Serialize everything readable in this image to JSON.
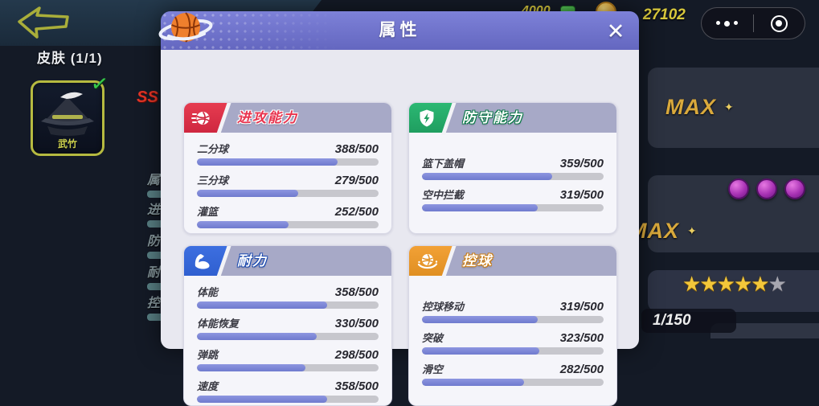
{
  "hud": {
    "skin_header": "皮肤 (1/1)",
    "skin_name": "武竹",
    "skin_check": "✓",
    "rarity": "SS",
    "bg_nav_labels": [
      "属",
      "进",
      "防",
      "耐",
      "控"
    ],
    "currency_small": "4000",
    "currency_coins": "27102",
    "max_label_1": "MAX",
    "max_label_2": "MAX",
    "sparkle": "✦",
    "gem_orbs": 3,
    "stars": {
      "filled": 5,
      "empty": 1,
      "glyph": "★"
    },
    "progress_counter": "1/150"
  },
  "modal": {
    "title": "属性",
    "close": "✕",
    "sections": [
      {
        "id": "offense",
        "title": "进攻能力",
        "icon": "flaming-basketball-icon",
        "badge_color": "#e63c50",
        "badge_color_dark": "#cf2740",
        "title_text_color": "#e8344e",
        "title_outline_color": "#ffffff",
        "stats": [
          {
            "label": "二分球",
            "value": 388,
            "max": 500
          },
          {
            "label": "三分球",
            "value": 279,
            "max": 500
          },
          {
            "label": "灌篮",
            "value": 252,
            "max": 500
          }
        ]
      },
      {
        "id": "defense",
        "title": "防守能力",
        "icon": "shield-lightning-icon",
        "badge_color": "#2cb873",
        "badge_color_dark": "#1f9e60",
        "title_text_color": "#ffffff",
        "title_outline_color": "#0d7a4a",
        "stats": [
          {
            "label": "篮下盖帽",
            "value": 359,
            "max": 500
          },
          {
            "label": "空中拦截",
            "value": 319,
            "max": 500
          }
        ]
      },
      {
        "id": "endurance",
        "title": "耐力",
        "icon": "biceps-icon",
        "badge_color": "#3d6fe0",
        "badge_color_dark": "#2f5fd0",
        "title_text_color": "#ffffff",
        "title_outline_color": "#1d4bb0",
        "stats": [
          {
            "label": "体能",
            "value": 358,
            "max": 500
          },
          {
            "label": "体能恢复",
            "value": 330,
            "max": 500
          },
          {
            "label": "弹跳",
            "value": 298,
            "max": 500
          },
          {
            "label": "速度",
            "value": 358,
            "max": 500
          }
        ]
      },
      {
        "id": "control",
        "title": "控球",
        "icon": "basketball-swoosh-icon",
        "badge_color": "#f2a136",
        "badge_color_dark": "#e08f22",
        "title_text_color": "#ffffff",
        "title_outline_color": "#c97a10",
        "stats": [
          {
            "label": "控球移动",
            "value": 319,
            "max": 500
          },
          {
            "label": "突破",
            "value": 323,
            "max": 500
          },
          {
            "label": "滑空",
            "value": 282,
            "max": 500
          }
        ]
      }
    ]
  },
  "colors": {
    "modal_header": "#6c6fc6",
    "modal_body": "#e8e8f0",
    "card_header_band": "#a7a9c7",
    "bar_fill": "#7c86d6",
    "bar_track": "#c7c7cd",
    "currency_text": "#d8c83c",
    "max_text": "#d9a93c"
  }
}
